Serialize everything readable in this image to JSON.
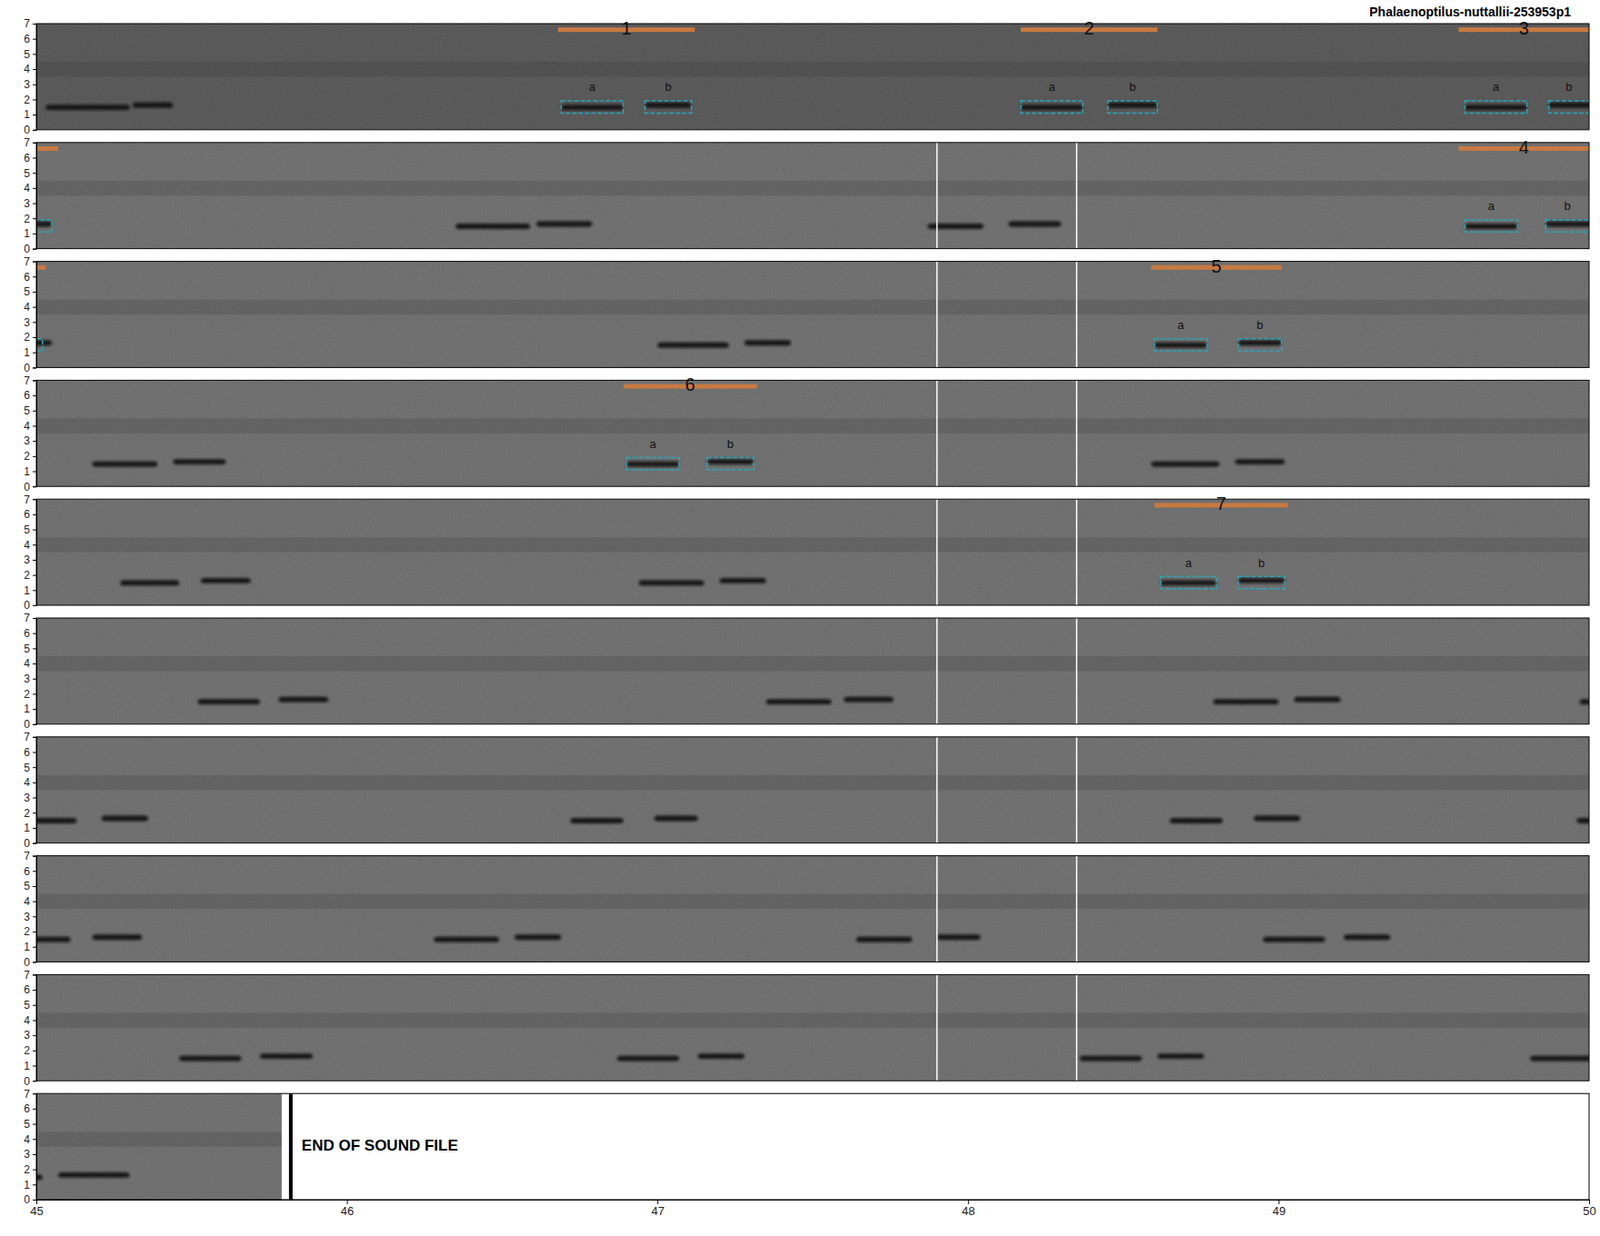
{
  "chart_data": {
    "type": "spectrogram",
    "title": "Phalaenoptilus-nuttallii-253953p1",
    "rows": [
      [
        0,
        5
      ],
      [
        5,
        10
      ],
      [
        10,
        15
      ],
      [
        15,
        20
      ],
      [
        20,
        25
      ],
      [
        25,
        30
      ],
      [
        30,
        35
      ],
      [
        35,
        40
      ],
      [
        40,
        45
      ],
      [
        45,
        50
      ]
    ],
    "xlim": [
      45,
      50
    ],
    "xticks": [
      45,
      46,
      47,
      48,
      49,
      50
    ],
    "ylim": [
      0,
      7
    ],
    "yticks": [
      0,
      1,
      2,
      3,
      4,
      5,
      6,
      7
    ],
    "calls": [
      {
        "x": [
          0.03,
          0.3
        ],
        "y": [
          1.3,
          1.65
        ]
      },
      {
        "x": [
          0.31,
          0.44
        ],
        "y": [
          1.45,
          1.8
        ]
      },
      {
        "x": [
          1.69,
          1.89
        ],
        "y": [
          1.3,
          1.65
        ]
      },
      {
        "x": [
          1.96,
          2.11
        ],
        "y": [
          1.45,
          1.8
        ]
      },
      {
        "x": [
          3.17,
          3.37
        ],
        "y": [
          1.3,
          1.65
        ]
      },
      {
        "x": [
          3.45,
          3.61
        ],
        "y": [
          1.45,
          1.8
        ]
      },
      {
        "x": [
          4.6,
          4.8
        ],
        "y": [
          1.3,
          1.65
        ]
      },
      {
        "x": [
          4.87,
          5.05
        ],
        "y": [
          1.45,
          1.8
        ]
      },
      {
        "x": [
          6.35,
          6.59
        ],
        "y": [
          1.3,
          1.65
        ]
      },
      {
        "x": [
          6.61,
          6.79
        ],
        "y": [
          1.45,
          1.8
        ]
      },
      {
        "x": [
          7.87,
          8.05
        ],
        "y": [
          1.3,
          1.65
        ]
      },
      {
        "x": [
          8.13,
          8.3
        ],
        "y": [
          1.45,
          1.8
        ]
      },
      {
        "x": [
          9.6,
          9.77
        ],
        "y": [
          1.3,
          1.65
        ]
      },
      {
        "x": [
          9.86,
          10.05
        ],
        "y": [
          1.45,
          1.8
        ]
      },
      {
        "x": [
          12.0,
          12.23
        ],
        "y": [
          1.3,
          1.65
        ]
      },
      {
        "x": [
          12.28,
          12.43
        ],
        "y": [
          1.45,
          1.8
        ]
      },
      {
        "x": [
          13.6,
          13.77
        ],
        "y": [
          1.3,
          1.65
        ]
      },
      {
        "x": [
          13.87,
          14.01
        ],
        "y": [
          1.45,
          1.8
        ]
      },
      {
        "x": [
          15.18,
          15.39
        ],
        "y": [
          1.3,
          1.65
        ]
      },
      {
        "x": [
          15.44,
          15.61
        ],
        "y": [
          1.45,
          1.8
        ]
      },
      {
        "x": [
          16.9,
          17.07
        ],
        "y": [
          1.3,
          1.65
        ]
      },
      {
        "x": [
          17.16,
          17.31
        ],
        "y": [
          1.45,
          1.8
        ]
      },
      {
        "x": [
          18.59,
          18.81
        ],
        "y": [
          1.3,
          1.65
        ]
      },
      {
        "x": [
          18.86,
          19.02
        ],
        "y": [
          1.45,
          1.8
        ]
      },
      {
        "x": [
          20.27,
          20.46
        ],
        "y": [
          1.3,
          1.65
        ]
      },
      {
        "x": [
          20.53,
          20.69
        ],
        "y": [
          1.45,
          1.8
        ]
      },
      {
        "x": [
          21.94,
          22.15
        ],
        "y": [
          1.3,
          1.65
        ]
      },
      {
        "x": [
          22.2,
          22.35
        ],
        "y": [
          1.45,
          1.8
        ]
      },
      {
        "x": [
          23.62,
          23.8
        ],
        "y": [
          1.3,
          1.65
        ]
      },
      {
        "x": [
          23.87,
          24.02
        ],
        "y": [
          1.45,
          1.8
        ]
      },
      {
        "x": [
          25.52,
          25.72
        ],
        "y": [
          1.3,
          1.65
        ]
      },
      {
        "x": [
          25.78,
          25.94
        ],
        "y": [
          1.45,
          1.8
        ]
      },
      {
        "x": [
          27.35,
          27.56
        ],
        "y": [
          1.3,
          1.65
        ]
      },
      {
        "x": [
          27.6,
          27.76
        ],
        "y": [
          1.45,
          1.8
        ]
      },
      {
        "x": [
          28.79,
          29.0
        ],
        "y": [
          1.3,
          1.65
        ]
      },
      {
        "x": [
          29.05,
          29.2
        ],
        "y": [
          1.45,
          1.8
        ]
      },
      {
        "x": [
          29.97,
          30.13
        ],
        "y": [
          1.3,
          1.65
        ]
      },
      {
        "x": [
          30.21,
          30.36
        ],
        "y": [
          1.45,
          1.8
        ]
      },
      {
        "x": [
          31.72,
          31.89
        ],
        "y": [
          1.3,
          1.65
        ]
      },
      {
        "x": [
          31.99,
          32.13
        ],
        "y": [
          1.45,
          1.8
        ]
      },
      {
        "x": [
          33.65,
          33.82
        ],
        "y": [
          1.3,
          1.65
        ]
      },
      {
        "x": [
          33.92,
          34.07
        ],
        "y": [
          1.45,
          1.8
        ]
      },
      {
        "x": [
          34.96,
          35.11
        ],
        "y": [
          1.3,
          1.65
        ]
      },
      {
        "x": [
          35.18,
          35.34
        ],
        "y": [
          1.45,
          1.8
        ]
      },
      {
        "x": [
          36.28,
          36.49
        ],
        "y": [
          1.3,
          1.65
        ]
      },
      {
        "x": [
          36.54,
          36.69
        ],
        "y": [
          1.45,
          1.8
        ]
      },
      {
        "x": [
          37.64,
          37.82
        ],
        "y": [
          1.3,
          1.65
        ]
      },
      {
        "x": [
          37.9,
          38.04
        ],
        "y": [
          1.45,
          1.8
        ]
      },
      {
        "x": [
          38.95,
          39.15
        ],
        "y": [
          1.3,
          1.65
        ]
      },
      {
        "x": [
          39.21,
          39.36
        ],
        "y": [
          1.45,
          1.8
        ]
      },
      {
        "x": [
          40.46,
          40.66
        ],
        "y": [
          1.3,
          1.65
        ]
      },
      {
        "x": [
          40.72,
          40.89
        ],
        "y": [
          1.45,
          1.8
        ]
      },
      {
        "x": [
          41.87,
          42.07
        ],
        "y": [
          1.3,
          1.65
        ]
      },
      {
        "x": [
          42.13,
          42.28
        ],
        "y": [
          1.45,
          1.8
        ]
      },
      {
        "x": [
          43.36,
          43.56
        ],
        "y": [
          1.3,
          1.65
        ]
      },
      {
        "x": [
          43.61,
          43.76
        ],
        "y": [
          1.45,
          1.8
        ]
      },
      {
        "x": [
          44.81,
          45.02
        ],
        "y": [
          1.3,
          1.65
        ]
      },
      {
        "x": [
          45.07,
          45.3
        ],
        "y": [
          1.45,
          1.8
        ]
      }
    ],
    "annotations": [
      {
        "label": "1",
        "x": [
          1.68,
          2.12
        ],
        "notes": [
          {
            "label": "a",
            "x": [
              1.69,
              1.89
            ],
            "y": [
              1.1,
              1.9
            ]
          },
          {
            "label": "b",
            "x": [
              1.96,
              2.11
            ],
            "y": [
              1.1,
              1.9
            ]
          }
        ]
      },
      {
        "label": "2",
        "x": [
          3.17,
          3.61
        ],
        "notes": [
          {
            "label": "a",
            "x": [
              3.17,
              3.37
            ],
            "y": [
              1.1,
              1.9
            ]
          },
          {
            "label": "b",
            "x": [
              3.45,
              3.61
            ],
            "y": [
              1.1,
              1.9
            ]
          }
        ]
      },
      {
        "label": "3",
        "x": [
          4.58,
          5.07
        ],
        "notes": [
          {
            "label": "a",
            "x": [
              4.6,
              4.8
            ],
            "y": [
              1.1,
              1.9
            ]
          },
          {
            "label": "b",
            "x": [
              4.87,
              5.05
            ],
            "y": [
              1.1,
              1.9
            ]
          }
        ]
      },
      {
        "label": "4",
        "x": [
          9.58,
          10.03
        ],
        "notes": [
          {
            "label": "a",
            "x": [
              9.6,
              9.77
            ],
            "y": [
              1.1,
              1.9
            ]
          },
          {
            "label": "b",
            "x": [
              9.86,
              10.02
            ],
            "y": [
              1.1,
              1.9
            ]
          }
        ]
      },
      {
        "label": "5",
        "x": [
          13.59,
          14.01
        ],
        "notes": [
          {
            "label": "a",
            "x": [
              13.6,
              13.77
            ],
            "y": [
              1.1,
              1.9
            ]
          },
          {
            "label": "b",
            "x": [
              13.87,
              14.01
            ],
            "y": [
              1.1,
              1.9
            ]
          }
        ]
      },
      {
        "label": "6",
        "x": [
          16.89,
          17.32
        ],
        "notes": [
          {
            "label": "a",
            "x": [
              16.9,
              17.07
            ],
            "y": [
              1.1,
              1.9
            ]
          },
          {
            "label": "b",
            "x": [
              17.16,
              17.31
            ],
            "y": [
              1.1,
              1.9
            ]
          }
        ]
      },
      {
        "label": "7",
        "x": [
          23.6,
          24.03
        ],
        "notes": [
          {
            "label": "a",
            "x": [
              23.62,
              23.8
            ],
            "y": [
              1.1,
              1.9
            ]
          },
          {
            "label": "b",
            "x": [
              23.87,
              24.02
            ],
            "y": [
              1.1,
              1.9
            ]
          }
        ]
      }
    ],
    "markers": {
      "x": [
        47.9,
        48.35
      ],
      "rows": [
        1,
        8
      ]
    },
    "end_of_file": {
      "x": 45.79,
      "label": "END OF SOUND FILE"
    }
  }
}
